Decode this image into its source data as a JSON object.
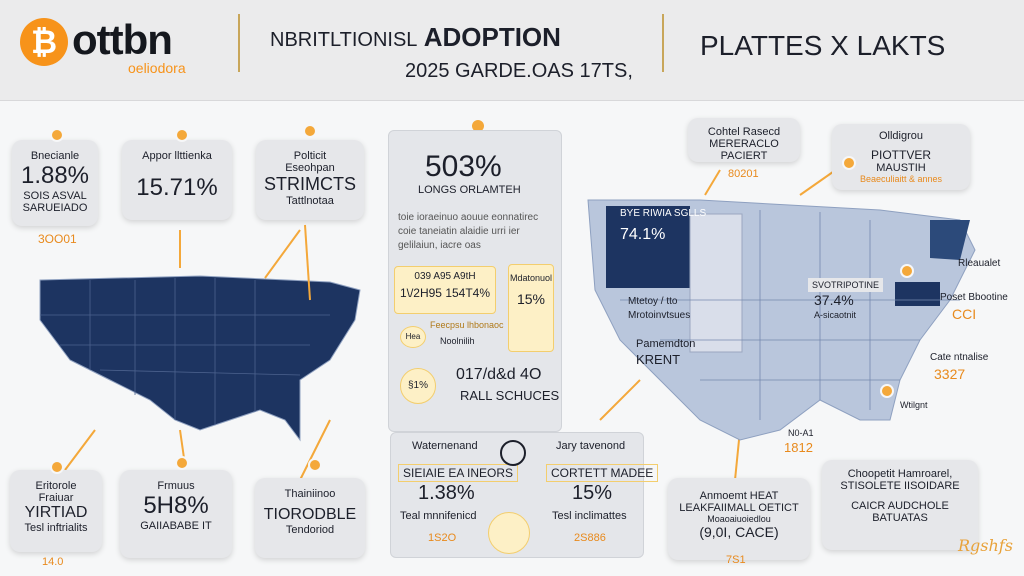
{
  "header": {
    "logo_glyph": "₿",
    "logo_word": "ottbn",
    "logo_sub": "oeliodora",
    "title_lead": "NBRITLTIONISL",
    "title_main": "ADOPTION",
    "subtitle": "2025 GARDE.OAS 17TS,",
    "right_title": "PLATTES X LAKTS"
  },
  "left_cards_top": [
    {
      "label": "Bnecianle",
      "value": "1.88%",
      "line1": "SOIS ASVAL",
      "line2": "SARUEIADO",
      "footer": "3OO01"
    },
    {
      "label": "Appor llttienka",
      "value": "15.71%"
    },
    {
      "label": "Polticit",
      "line1": "Eseohpan",
      "value": "STRIMCTS",
      "line2": "Tattlnotaa"
    }
  ],
  "left_cards_bottom": [
    {
      "label": "Eritorole",
      "line1": "Fraiuar",
      "value": "YIRTIAD",
      "line2": "Tesl inftrialits",
      "footer": "14.0"
    },
    {
      "label": "Frmuus",
      "value": "5H8%",
      "line2": "GAIIABABE IT"
    },
    {
      "label": "Thainiinoo",
      "value": "TIORODBLE",
      "line2": "Tendoriod"
    }
  ],
  "center": {
    "big_value": "503%",
    "big_label": "LONGS ORLAMTEH",
    "para": [
      "toie ioraeinuo aouue eonnatirec",
      "coie taneiatin alaidie urri ier",
      "gelilaiun, iacre oas"
    ],
    "mini_card_label": "039 A95 A9tH",
    "mini_card_v1": "1\\/2H95",
    "mini_card_v2": "154T4%",
    "side_card_label": "Mdatonuol",
    "side_card_value": "15%",
    "callout_icon": "Hea",
    "callout_text": "Feecpsu lhbonaoc",
    "callout_sub": "Noolnilih",
    "circle_value": "§1%",
    "stat_value": "017/d&d 4O",
    "stat_label": "RALL SCHUCES"
  },
  "center_bottom": {
    "left_head": "Waternenand",
    "left_title": "SIEIAIE EA INEORS",
    "left_value": "1.38%",
    "left_label": "Teal mnnifenicd",
    "left_footer": "1S2O",
    "right_head": "Jary tavenond",
    "right_title": "CORTETT MADEE",
    "right_value": "15%",
    "right_label": "Tesl inclimattes",
    "right_footer": "2S886"
  },
  "right_map": {
    "top_card_title": "Cohtel Rasecd",
    "top_card_sub": "MERERACLO PACIERT",
    "top_card_foot": "80201",
    "top_right_label": "Olldigrou",
    "top_right_title": "PIOTTVER",
    "top_right_sub": "MAUSTIH",
    "top_right_foot": "Beaeculiaitt & annes",
    "region1_label": "BYE RIWIA SGLLS",
    "region1_value": "74.1%",
    "region2_label": "Mtetoy / tto",
    "region2_sub": "Mrotoinvtsues",
    "region3_label": "Pamemdton",
    "region3_value": "KRENT",
    "region4_label": "SVOTRIPOTINE",
    "region4_value": "37.4%",
    "region4_sub": "A-sicaotnit",
    "ne_label": "Rleaualet",
    "ne_sub": "Poset Bbootine",
    "ne_value": "CCI",
    "se_label": "Cate ntnalise",
    "se_value": "3327",
    "south_label": "Wtilgnt",
    "gulf_label": "N0-A1",
    "gulf_value": "1812"
  },
  "right_bottom": {
    "left_head": "Anmoemt HEAT",
    "left_title": "LEAKFAIIMALL OETICT",
    "left_sub": "Moaoaiuoiedlou",
    "left_value": "(9,0I, CACE)",
    "left_footer": "7S1",
    "right_head1": "Choopetit",
    "right_head2": "Hamroarel,",
    "right_title1": "STISOLETE",
    "right_title2": "IISOIDARE",
    "right_value": "CAICR AUDCHOLE",
    "right_value2": "BATUATAS",
    "signature": "Rgshfs"
  },
  "colors": {
    "accent": "#f7931a",
    "map_navy": "#1d3461",
    "map_light": "#b9c6dc"
  },
  "icons": [
    "bitcoin-icon",
    "pin-icon",
    "arrow-icon"
  ]
}
